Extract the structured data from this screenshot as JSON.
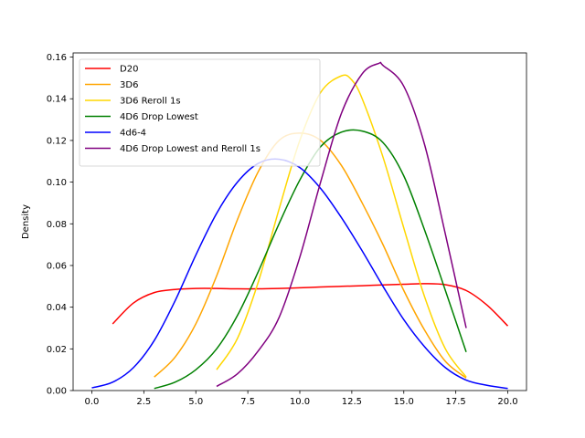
{
  "chart_data": {
    "type": "line",
    "title": "",
    "xlabel": "",
    "ylabel": "Density",
    "xlim": [
      -0.9,
      20.9
    ],
    "ylim": [
      0.0,
      0.162
    ],
    "xticks": [
      0.0,
      2.5,
      5.0,
      7.5,
      10.0,
      12.5,
      15.0,
      17.5,
      20.0
    ],
    "xtick_labels": [
      "0.0",
      "2.5",
      "5.0",
      "7.5",
      "10.0",
      "12.5",
      "15.0",
      "17.5",
      "20.0"
    ],
    "yticks": [
      0.0,
      0.02,
      0.04,
      0.06,
      0.08,
      0.1,
      0.12,
      0.14,
      0.16
    ],
    "ytick_labels": [
      "0.00",
      "0.02",
      "0.04",
      "0.06",
      "0.08",
      "0.10",
      "0.12",
      "0.14",
      "0.16"
    ],
    "grid": false,
    "legend": "upper-left",
    "series": [
      {
        "name": "D20",
        "color": "#ff0000",
        "x": [
          1,
          2,
          3,
          4,
          5,
          6,
          7,
          8,
          9,
          10,
          11,
          12,
          13,
          14,
          15,
          16,
          17,
          18,
          19,
          20
        ],
        "y": [
          0.032,
          0.042,
          0.047,
          0.0485,
          0.049,
          0.049,
          0.0488,
          0.0488,
          0.049,
          0.0493,
          0.0497,
          0.05,
          0.0503,
          0.0507,
          0.051,
          0.0513,
          0.0508,
          0.048,
          0.041,
          0.031
        ]
      },
      {
        "name": "3D6",
        "color": "#ffa500",
        "x": [
          3,
          4,
          5,
          6,
          7,
          8,
          9,
          10,
          11,
          12,
          13,
          14,
          15,
          16,
          17,
          18
        ],
        "y": [
          0.0065,
          0.016,
          0.032,
          0.055,
          0.082,
          0.105,
          0.12,
          0.1235,
          0.12,
          0.108,
          0.09,
          0.07,
          0.048,
          0.029,
          0.014,
          0.006
        ]
      },
      {
        "name": "3D6 Reroll 1s",
        "color": "#ffd700",
        "x": [
          6,
          7,
          8,
          9,
          10,
          11,
          12,
          12.5,
          13,
          14,
          15,
          16,
          17,
          18
        ],
        "y": [
          0.01,
          0.025,
          0.052,
          0.087,
          0.12,
          0.143,
          0.151,
          0.149,
          0.14,
          0.112,
          0.078,
          0.045,
          0.02,
          0.0065
        ]
      },
      {
        "name": "4D6 Drop Lowest",
        "color": "#008000",
        "x": [
          3,
          4,
          5,
          6,
          7,
          8,
          9,
          10,
          11,
          12,
          13,
          14,
          15,
          16,
          17,
          18
        ],
        "y": [
          0.001,
          0.004,
          0.01,
          0.02,
          0.036,
          0.057,
          0.08,
          0.101,
          0.117,
          0.124,
          0.1245,
          0.119,
          0.103,
          0.077,
          0.048,
          0.0185
        ]
      },
      {
        "name": "4d6-4",
        "color": "#0000ff",
        "x": [
          0,
          1,
          2,
          3,
          4,
          5,
          6,
          7,
          8,
          9,
          10,
          11,
          12,
          13,
          14,
          15,
          16,
          17,
          18,
          19,
          20
        ],
        "y": [
          0.0013,
          0.004,
          0.011,
          0.024,
          0.043,
          0.065,
          0.085,
          0.1,
          0.109,
          0.111,
          0.107,
          0.097,
          0.083,
          0.067,
          0.05,
          0.034,
          0.021,
          0.011,
          0.005,
          0.0025,
          0.001
        ]
      },
      {
        "name": "4D6 Drop Lowest and Reroll 1s",
        "color": "#800080",
        "x": [
          6,
          7,
          8,
          9,
          10,
          11,
          12,
          13,
          13.8,
          14,
          15,
          16,
          17,
          18
        ],
        "y": [
          0.002,
          0.008,
          0.019,
          0.035,
          0.064,
          0.1,
          0.133,
          0.152,
          0.157,
          0.156,
          0.146,
          0.118,
          0.075,
          0.03
        ]
      }
    ]
  }
}
